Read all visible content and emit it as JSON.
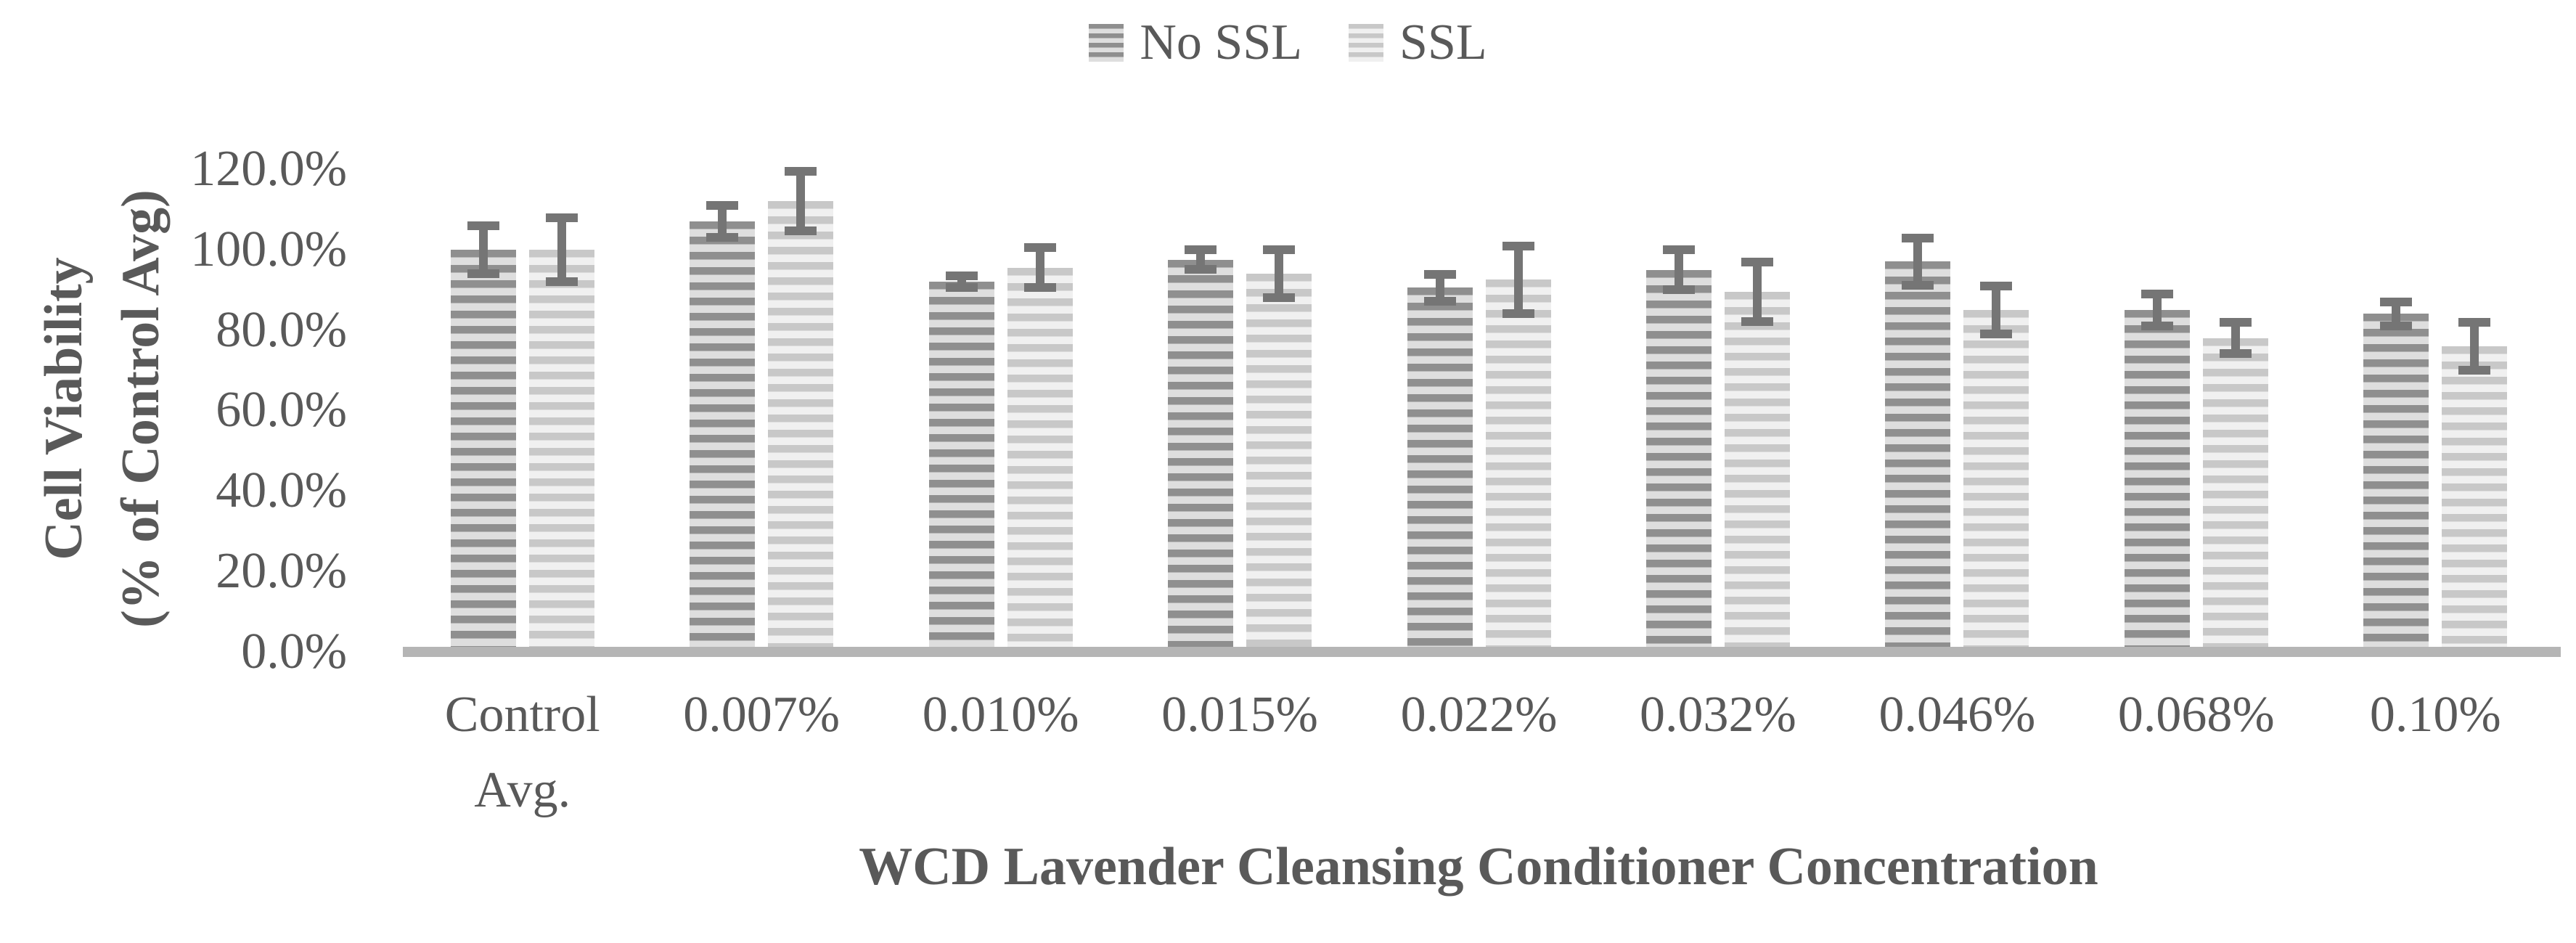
{
  "chart_data": {
    "type": "bar",
    "title": "",
    "xlabel": "WCD Lavender Cleansing Conditioner Concentration",
    "ylabel": "Cell Viability (% of Control Avg)",
    "ylabel_lines": {
      "line1": "Cell Viability",
      "line2": "(% of Control Avg)"
    },
    "categories": [
      "Control Avg.",
      "0.007%",
      "0.010%",
      "0.015%",
      "0.022%",
      "0.032%",
      "0.046%",
      "0.068%",
      "0.10%"
    ],
    "categories_display": [
      [
        "Control",
        "Avg."
      ],
      [
        "0.007%"
      ],
      [
        "0.010%"
      ],
      [
        "0.015%"
      ],
      [
        "0.022%"
      ],
      [
        "0.032%"
      ],
      [
        "0.046%"
      ],
      [
        "0.068%"
      ],
      [
        "0.10%"
      ]
    ],
    "series": [
      {
        "name": "No SSL",
        "values": [
          100,
          107,
          92,
          97.5,
          90.5,
          95,
          97,
          85,
          84
        ],
        "errors": [
          7,
          5,
          2.5,
          3.5,
          4.5,
          6,
          7,
          5,
          4
        ]
      },
      {
        "name": "SSL",
        "values": [
          100,
          112,
          95.5,
          94,
          92.5,
          89.5,
          85,
          78,
          76
        ],
        "errors": [
          9,
          8.5,
          6,
          7,
          9.5,
          8.5,
          7,
          5,
          7
        ]
      }
    ],
    "y_ticks": [
      "0.0%",
      "20.0%",
      "40.0%",
      "60.0%",
      "80.0%",
      "100.0%",
      "120.0%"
    ],
    "y_tick_values": [
      0,
      20,
      40,
      60,
      80,
      100,
      120
    ],
    "ylim": [
      0,
      120
    ],
    "grid": false,
    "error_bars": true,
    "legend_position": "top-center"
  },
  "styles": {
    "background": "#ffffff",
    "text_color": "#595959",
    "axis_line_color": "#b5b5b5",
    "error_bar_color": "#757575",
    "series_patterns": [
      {
        "name": "no-ssl",
        "stripe_dark": "#8f8f8f",
        "stripe_light": "#dedede"
      },
      {
        "name": "ssl",
        "stripe_dark": "#c8c8c8",
        "stripe_light": "#f0f0f0"
      }
    ]
  }
}
